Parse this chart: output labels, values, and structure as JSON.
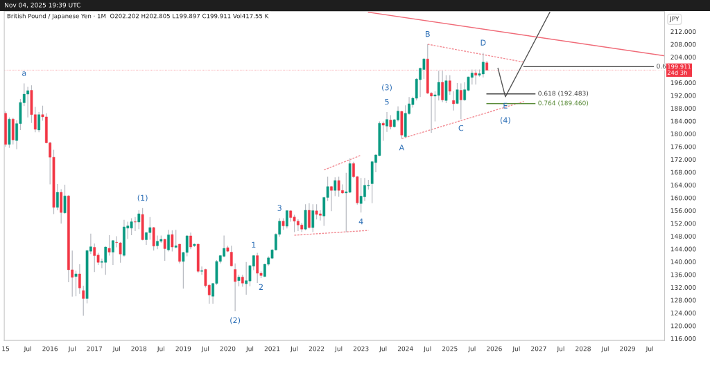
{
  "chart_data": {
    "type": "candlestick",
    "title": "British Pound / Japanese Yen · 1M  O202.202 H202.805 L199.897 C199.911 Vol417.55 K",
    "ylabel": "JPY",
    "x": [
      "2015-01",
      "2015-02",
      "2015-03",
      "2015-04",
      "2015-05",
      "2015-06",
      "2015-07",
      "2015-08",
      "2015-09",
      "2015-10",
      "2015-11",
      "2015-12",
      "2016-01",
      "2016-02",
      "2016-03",
      "2016-04",
      "2016-05",
      "2016-06",
      "2016-07",
      "2016-08",
      "2016-09",
      "2016-10",
      "2016-11",
      "2016-12",
      "2017-01",
      "2017-02",
      "2017-03",
      "2017-04",
      "2017-05",
      "2017-06",
      "2017-07",
      "2017-08",
      "2017-09",
      "2017-10",
      "2017-11",
      "2017-12",
      "2018-01",
      "2018-02",
      "2018-03",
      "2018-04",
      "2018-05",
      "2018-06",
      "2018-07",
      "2018-08",
      "2018-09",
      "2018-10",
      "2018-11",
      "2018-12",
      "2019-01",
      "2019-02",
      "2019-03",
      "2019-04",
      "2019-05",
      "2019-06",
      "2019-07",
      "2019-08",
      "2019-09",
      "2019-10",
      "2019-11",
      "2019-12",
      "2020-01",
      "2020-02",
      "2020-03",
      "2020-04",
      "2020-05",
      "2020-06",
      "2020-07",
      "2020-08",
      "2020-09",
      "2020-10",
      "2020-11",
      "2020-12",
      "2021-01",
      "2021-02",
      "2021-03",
      "2021-04",
      "2021-05",
      "2021-06",
      "2021-07",
      "2021-08",
      "2021-09",
      "2021-10",
      "2021-11",
      "2021-12",
      "2022-01",
      "2022-02",
      "2022-03",
      "2022-04",
      "2022-05",
      "2022-06",
      "2022-07",
      "2022-08",
      "2022-09",
      "2022-10",
      "2022-11",
      "2022-12",
      "2023-01",
      "2023-02",
      "2023-03",
      "2023-04",
      "2023-05",
      "2023-06",
      "2023-07",
      "2023-08",
      "2023-09",
      "2023-10",
      "2023-11",
      "2023-12",
      "2024-01",
      "2024-02",
      "2024-03",
      "2024-04",
      "2024-05",
      "2024-06",
      "2024-07",
      "2024-08",
      "2024-09",
      "2024-10",
      "2024-11",
      "2024-12",
      "2025-01",
      "2025-02",
      "2025-03",
      "2025-04",
      "2025-05",
      "2025-06",
      "2025-07",
      "2025-08",
      "2025-09",
      "2025-10",
      "2025-11"
    ],
    "ohlc": [
      [
        186.4,
        187.0,
        176.0,
        176.7
      ],
      [
        176.7,
        185.1,
        175.6,
        184.6
      ],
      [
        184.6,
        185.0,
        176.7,
        178.1
      ],
      [
        177.9,
        184.2,
        175.2,
        183.2
      ],
      [
        183.2,
        190.9,
        181.2,
        189.8
      ],
      [
        189.7,
        195.8,
        188.7,
        192.4
      ],
      [
        192.4,
        194.7,
        185.1,
        193.5
      ],
      [
        193.6,
        195.2,
        183.4,
        186.0
      ],
      [
        186.0,
        188.4,
        180.5,
        181.4
      ],
      [
        181.2,
        186.8,
        180.5,
        186.0
      ],
      [
        186.0,
        188.8,
        184.1,
        185.3
      ],
      [
        185.3,
        186.4,
        177.0,
        177.2
      ],
      [
        177.2,
        177.5,
        164.2,
        172.7
      ],
      [
        172.7,
        175.0,
        154.9,
        157.0
      ],
      [
        157.0,
        164.3,
        156.1,
        161.7
      ],
      [
        161.7,
        162.7,
        151.9,
        155.4
      ],
      [
        155.3,
        164.1,
        155.0,
        160.6
      ],
      [
        160.6,
        160.8,
        133.6,
        137.5
      ],
      [
        137.5,
        143.5,
        129.1,
        135.1
      ],
      [
        135.4,
        137.2,
        129.2,
        136.2
      ],
      [
        136.2,
        139.2,
        130.0,
        131.8
      ],
      [
        131.0,
        132.5,
        123.1,
        128.5
      ],
      [
        128.5,
        143.6,
        127.0,
        143.5
      ],
      [
        143.3,
        148.8,
        142.4,
        144.7
      ],
      [
        144.5,
        145.7,
        136.8,
        141.9
      ],
      [
        142.1,
        142.8,
        139.0,
        139.8
      ],
      [
        139.8,
        141.0,
        138.0,
        140.1
      ],
      [
        139.8,
        144.8,
        135.9,
        144.6
      ],
      [
        144.2,
        148.3,
        141.9,
        143.0
      ],
      [
        143.0,
        146.8,
        139.0,
        146.6
      ],
      [
        146.1,
        148.0,
        144.5,
        146.0
      ],
      [
        145.9,
        146.2,
        139.7,
        142.4
      ],
      [
        142.0,
        153.1,
        141.6,
        150.9
      ],
      [
        150.5,
        152.5,
        147.1,
        151.2
      ],
      [
        150.5,
        153.6,
        148.3,
        152.5
      ],
      [
        152.5,
        154.0,
        149.6,
        152.4
      ],
      [
        152.4,
        156.1,
        150.2,
        155.0
      ],
      [
        154.8,
        156.8,
        146.7,
        146.9
      ],
      [
        146.9,
        149.3,
        145.3,
        149.1
      ],
      [
        149.1,
        154.0,
        146.9,
        150.7
      ],
      [
        150.7,
        150.9,
        143.5,
        144.9
      ],
      [
        145.0,
        148.2,
        143.9,
        146.4
      ],
      [
        146.4,
        148.2,
        145.9,
        147.0
      ],
      [
        147.0,
        147.2,
        140.3,
        144.1
      ],
      [
        143.7,
        150.0,
        143.2,
        148.4
      ],
      [
        148.5,
        149.8,
        143.2,
        144.6
      ],
      [
        144.5,
        150.0,
        144.2,
        145.0
      ],
      [
        145.5,
        145.6,
        139.5,
        140.1
      ],
      [
        140.1,
        143.1,
        131.6,
        142.9
      ],
      [
        142.9,
        148.3,
        141.7,
        148.1
      ],
      [
        148.1,
        149.1,
        143.9,
        144.6
      ],
      [
        145.0,
        145.7,
        144.6,
        145.5
      ],
      [
        145.5,
        145.7,
        136.5,
        137.0
      ],
      [
        137.0,
        138.5,
        135.9,
        137.2
      ],
      [
        137.6,
        137.8,
        132.0,
        132.5
      ],
      [
        132.7,
        132.9,
        126.9,
        129.6
      ],
      [
        129.2,
        133.4,
        126.9,
        133.2
      ],
      [
        133.2,
        140.5,
        132.8,
        140.1
      ],
      [
        140.1,
        142.1,
        139.5,
        141.9
      ],
      [
        141.7,
        148.2,
        141.4,
        144.2
      ],
      [
        144.4,
        145.0,
        143.0,
        143.3
      ],
      [
        143.0,
        145.0,
        138.5,
        138.7
      ],
      [
        137.6,
        139.5,
        124.5,
        133.8
      ],
      [
        134.1,
        135.9,
        132.3,
        135.2
      ],
      [
        135.2,
        135.9,
        132.2,
        133.3
      ],
      [
        133.1,
        139.9,
        129.7,
        134.1
      ],
      [
        134.0,
        138.9,
        132.3,
        138.8
      ],
      [
        138.6,
        142.1,
        137.4,
        141.9
      ],
      [
        141.9,
        142.8,
        133.4,
        136.4
      ],
      [
        136.4,
        137.0,
        134.9,
        135.7
      ],
      [
        135.4,
        139.4,
        135.2,
        139.2
      ],
      [
        139.2,
        141.7,
        138.8,
        141.2
      ],
      [
        141.1,
        143.9,
        140.9,
        143.7
      ],
      [
        143.7,
        148.9,
        143.5,
        148.6
      ],
      [
        148.6,
        153.6,
        147.8,
        152.7
      ],
      [
        152.7,
        153.6,
        150.0,
        151.2
      ],
      [
        151.1,
        156.1,
        150.4,
        156.0
      ],
      [
        155.9,
        156.1,
        152.5,
        153.8
      ],
      [
        154.0,
        154.7,
        149.3,
        152.7
      ],
      [
        152.7,
        153.3,
        149.6,
        151.5
      ],
      [
        151.5,
        152.2,
        149.3,
        150.2
      ],
      [
        150.2,
        158.0,
        149.8,
        156.1
      ],
      [
        156.1,
        158.3,
        150.4,
        150.7
      ],
      [
        150.7,
        158.0,
        149.3,
        156.0
      ],
      [
        155.9,
        158.0,
        153.2,
        154.8
      ],
      [
        155.0,
        156.1,
        152.9,
        154.5
      ],
      [
        154.3,
        160.3,
        151.2,
        160.1
      ],
      [
        160.1,
        166.6,
        159.0,
        163.5
      ],
      [
        163.5,
        163.7,
        155.8,
        162.3
      ],
      [
        162.3,
        166.4,
        160.5,
        165.4
      ],
      [
        165.4,
        166.6,
        160.3,
        162.3
      ],
      [
        162.3,
        164.2,
        161.2,
        161.5
      ],
      [
        161.5,
        167.8,
        149.3,
        161.9
      ],
      [
        161.7,
        172.3,
        161.5,
        170.7
      ],
      [
        170.7,
        171.3,
        166.2,
        166.6
      ],
      [
        166.6,
        166.8,
        157.9,
        158.4
      ],
      [
        158.2,
        166.2,
        155.4,
        160.5
      ],
      [
        160.3,
        166.2,
        159.0,
        163.9
      ],
      [
        163.7,
        165.6,
        162.6,
        163.9
      ],
      [
        164.4,
        171.5,
        158.3,
        171.3
      ],
      [
        171.0,
        173.6,
        168.0,
        173.4
      ],
      [
        173.2,
        183.9,
        173.0,
        183.3
      ],
      [
        183.3,
        183.9,
        177.8,
        182.7
      ],
      [
        182.4,
        186.8,
        180.6,
        184.5
      ],
      [
        184.3,
        185.8,
        181.4,
        182.2
      ],
      [
        182.2,
        184.6,
        182.0,
        184.4
      ],
      [
        184.3,
        188.6,
        183.9,
        187.1
      ],
      [
        187.0,
        187.2,
        178.5,
        179.6
      ],
      [
        179.1,
        188.9,
        178.9,
        186.4
      ],
      [
        186.3,
        191.5,
        186.0,
        189.4
      ],
      [
        189.1,
        191.6,
        188.2,
        191.1
      ],
      [
        191.1,
        197.4,
        190.4,
        197.1
      ],
      [
        196.9,
        200.7,
        191.5,
        200.5
      ],
      [
        200.1,
        203.6,
        197.2,
        203.4
      ],
      [
        203.4,
        208.0,
        192.5,
        192.7
      ],
      [
        192.7,
        193.0,
        180.3,
        191.8
      ],
      [
        191.8,
        193.3,
        183.9,
        192.2
      ],
      [
        192.0,
        199.7,
        190.4,
        196.1
      ],
      [
        196.1,
        199.7,
        189.9,
        190.6
      ],
      [
        190.4,
        198.3,
        189.6,
        196.6
      ],
      [
        196.6,
        198.3,
        192.2,
        193.3
      ],
      [
        190.4,
        193.3,
        187.3,
        189.4
      ],
      [
        189.5,
        195.9,
        189.3,
        193.8
      ],
      [
        193.6,
        195.8,
        184.6,
        190.6
      ],
      [
        190.6,
        196.1,
        190.3,
        193.8
      ],
      [
        193.6,
        197.9,
        193.3,
        197.8
      ],
      [
        197.6,
        200.1,
        195.4,
        199.0
      ],
      [
        199.0,
        200.1,
        195.4,
        198.3
      ],
      [
        198.3,
        200.1,
        197.9,
        198.8
      ],
      [
        198.7,
        205.3,
        197.6,
        202.4
      ],
      [
        202.202,
        202.805,
        199.897,
        199.911
      ]
    ],
    "series": [
      {
        "type": "line",
        "x": [
          "2021-07",
          "2023-03"
        ],
        "values": [
          148.3,
          149.8
        ],
        "color": "#f28b93",
        "line_style": "dashed"
      },
      {
        "type": "line",
        "x": [
          "2022-03",
          "2023-01"
        ],
        "values": [
          168.7,
          173.3
        ],
        "color": "#f28b93",
        "line_style": "dashed"
      },
      {
        "type": "line",
        "x": [
          "2023-12",
          "2026-09"
        ],
        "values": [
          178.5,
          190.1
        ],
        "color": "#f28b93",
        "line_style": "dashed"
      },
      {
        "type": "line",
        "x": [
          "2024-07",
          "2026-09"
        ],
        "values": [
          208.0,
          202.4
        ],
        "color": "#f28b93",
        "line_style": "dashed"
      },
      {
        "type": "line",
        "x": [
          "2023-03",
          "2029-11"
        ],
        "values": [
          218.0,
          204.4
        ],
        "color": "#f06b78",
        "line_style": "solid"
      },
      {
        "type": "line",
        "x": [
          "2026-02",
          "2026-04",
          "2027-04"
        ],
        "values": [
          200.5,
          191.6,
          218.0
        ],
        "color": "#555555",
        "line_style": "solid"
      },
      {
        "type": "line",
        "name": "0.618 (192.483)",
        "x": [
          "2025-11",
          "2026-12"
        ],
        "values": [
          192.483,
          192.483
        ],
        "color": "#444444",
        "line_style": "solid"
      },
      {
        "type": "line",
        "name": "0.764 (189.460)",
        "x": [
          "2025-11",
          "2026-12"
        ],
        "values": [
          189.46,
          189.46
        ],
        "color": "#5b8c3a",
        "line_style": "solid"
      },
      {
        "type": "line",
        "name": "0.6",
        "x": [
          "2026-09",
          "2029-08"
        ],
        "values": [
          201.0,
          201.0
        ],
        "color": "#444444",
        "line_style": "solid"
      }
    ],
    "ref_lines": [
      {
        "axis": "y",
        "value": 199.911,
        "label": "199.911\n24d 3h",
        "color": "#f23645",
        "line_style": "dotted"
      }
    ],
    "annotations": [
      "Nov 04, 2025 19:39 UTC",
      {
        "text": "a",
        "x": "2015-06",
        "y": 195.8
      },
      {
        "text": "(1)",
        "x": "2018-02",
        "y": 156.8
      },
      {
        "text": "(2)",
        "x": "2020-03",
        "y": 124.5
      },
      {
        "text": "1",
        "x": "2020-08",
        "y": 142.1
      },
      {
        "text": "2",
        "x": "2020-10",
        "y": 134.9
      },
      {
        "text": "3",
        "x": "2021-03",
        "y": 153.6
      },
      {
        "text": "4",
        "x": "2023-01",
        "y": 155.4
      },
      {
        "text": "5",
        "x": "2023-08",
        "y": 186.8
      },
      {
        "text": "(3)",
        "x": "2023-08",
        "y": 186.8
      },
      {
        "text": "A",
        "x": "2023-12",
        "y": 178.5
      },
      {
        "text": "B",
        "x": "2024-07",
        "y": 208.0
      },
      {
        "text": "C",
        "x": "2025-04",
        "y": 184.6
      },
      {
        "text": "D",
        "x": "2025-10",
        "y": 205.3
      },
      {
        "text": "E",
        "x": "2026-04",
        "y": 191.6
      },
      {
        "text": "(4)",
        "x": "2026-04",
        "y": 191.6
      }
    ],
    "xlim": [
      "2014-12-20",
      "2029-11-01"
    ],
    "xticks": [
      {
        "value": "2015-01",
        "label": "15"
      },
      {
        "value": "2015-07",
        "label": "Jul"
      },
      {
        "value": "2016-01",
        "label": "2016"
      },
      {
        "value": "2016-07",
        "label": "Jul"
      },
      {
        "value": "2017-01",
        "label": "2017"
      },
      {
        "value": "2017-07",
        "label": "Jul"
      },
      {
        "value": "2018-01",
        "label": "2018"
      },
      {
        "value": "2018-07",
        "label": "Jul"
      },
      {
        "value": "2019-01",
        "label": "2019"
      },
      {
        "value": "2019-07",
        "label": "Jul"
      },
      {
        "value": "2020-01",
        "label": "2020"
      },
      {
        "value": "2020-07",
        "label": "Jul"
      },
      {
        "value": "2021-01",
        "label": "2021"
      },
      {
        "value": "2021-07",
        "label": "Jul"
      },
      {
        "value": "2022-01",
        "label": "2022"
      },
      {
        "value": "2022-07",
        "label": "Jul"
      },
      {
        "value": "2023-01",
        "label": "2023"
      },
      {
        "value": "2023-07",
        "label": "Jul"
      },
      {
        "value": "2024-01",
        "label": "2024"
      },
      {
        "value": "2024-07",
        "label": "Jul"
      },
      {
        "value": "2025-01",
        "label": "2025"
      },
      {
        "value": "2025-07",
        "label": "Jul"
      },
      {
        "value": "2026-01",
        "label": "2026"
      },
      {
        "value": "2026-07",
        "label": "Jul"
      },
      {
        "value": "2027-01",
        "label": "2027"
      },
      {
        "value": "2027-07",
        "label": "Jul"
      },
      {
        "value": "2028-01",
        "label": "2028"
      },
      {
        "value": "2028-07",
        "label": "Jul"
      },
      {
        "value": "2029-01",
        "label": "2029"
      },
      {
        "value": "2029-07",
        "label": "Jul"
      }
    ],
    "ylim": [
      115.4,
      218.3
    ],
    "yticks": [
      {
        "value": 116,
        "label": "116.000"
      },
      {
        "value": 120,
        "label": "120.000"
      },
      {
        "value": 124,
        "label": "124.000"
      },
      {
        "value": 128,
        "label": "128.000"
      },
      {
        "value": 132,
        "label": "132.000"
      },
      {
        "value": 136,
        "label": "136.000"
      },
      {
        "value": 140,
        "label": "140.000"
      },
      {
        "value": 144,
        "label": "144.000"
      },
      {
        "value": 148,
        "label": "148.000"
      },
      {
        "value": 152,
        "label": "152.000"
      },
      {
        "value": 156,
        "label": "156.000"
      },
      {
        "value": 160,
        "label": "160.000"
      },
      {
        "value": 164,
        "label": "164.000"
      },
      {
        "value": 168,
        "label": "168.000"
      },
      {
        "value": 172,
        "label": "172.000"
      },
      {
        "value": 176,
        "label": "176.000"
      },
      {
        "value": 180,
        "label": "180.000"
      },
      {
        "value": 184,
        "label": "184.000"
      },
      {
        "value": 188,
        "label": "188.000"
      },
      {
        "value": 192,
        "label": "192.000"
      },
      {
        "value": 196,
        "label": "196.000"
      },
      {
        "value": 204,
        "label": "204.000"
      },
      {
        "value": 208,
        "label": "208.000"
      },
      {
        "value": 212,
        "label": "212.000"
      }
    ]
  }
}
